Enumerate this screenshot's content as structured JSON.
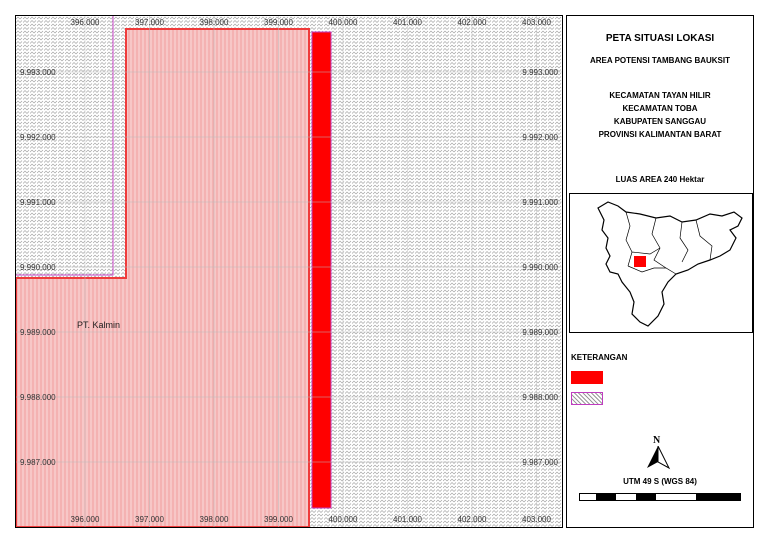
{
  "map": {
    "x_labels": [
      "396.000",
      "397.000",
      "398.000",
      "399.000",
      "400.000",
      "401.000",
      "402.000",
      "403.000"
    ],
    "y_labels": [
      "9.993.000",
      "9.992.000",
      "9.991.000",
      "9.990.000",
      "9.989.000",
      "9.988.000",
      "9.987.000"
    ],
    "area_label": "PT. Kalmin",
    "colors": {
      "concession_fill": "#f7c7c7",
      "concession_line": "#ef3b3b",
      "target": "#ff0000",
      "hatch_border": "#c03cc0",
      "hatch": "#9a9a9a"
    }
  },
  "panel": {
    "title": "PETA SITUASI LOKASI",
    "subtitle": "AREA POTENSI TAMBANG BAUKSIT",
    "location_lines": [
      "KECAMATAN TAYAN HILIR",
      "KECAMATAN TOBA",
      "KABUPATEN SANGGAU",
      "PROVINSI KALIMANTAN BARAT"
    ],
    "area_size": "LUAS AREA 240 Hektar",
    "legend_title": "KETERANGAN",
    "north_letter": "N",
    "projection": "UTM 49 S (WGS 84)"
  }
}
